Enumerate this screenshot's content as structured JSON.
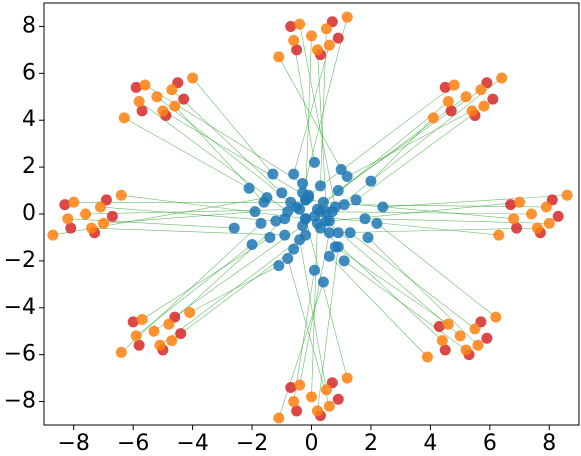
{
  "chart_data": {
    "type": "scatter",
    "xlim": [
      -9,
      9
    ],
    "ylim": [
      -9,
      9
    ],
    "xticks": [
      {
        "value": -8,
        "label": "−8"
      },
      {
        "value": -6,
        "label": "−6"
      },
      {
        "value": -4,
        "label": "−4"
      },
      {
        "value": -2,
        "label": "−2"
      },
      0,
      2,
      4,
      6,
      8
    ],
    "yticks": [
      {
        "value": -8,
        "label": "−8"
      },
      {
        "value": -6,
        "label": "−6"
      },
      {
        "value": -4,
        "label": "−4"
      },
      {
        "value": -2,
        "label": "−2"
      },
      0,
      2,
      4,
      6,
      8
    ],
    "link_color": "#2ca02c",
    "series": [
      {
        "color": "#d62728",
        "x": [
          8.1,
          6.7,
          7.7,
          6.9,
          8.3,
          5.9,
          4.5,
          5.5,
          4.7,
          6.1,
          0.7,
          -0.7,
          0.3,
          -0.5,
          0.9,
          -4.5,
          -5.9,
          -4.9,
          -5.7,
          -4.3,
          -6.9,
          -8.3,
          -7.3,
          -8.1,
          -6.7,
          -4.6,
          -6.0,
          -5.0,
          -5.8,
          -4.4,
          0.7,
          -0.7,
          0.3,
          -0.5,
          0.9,
          5.7,
          4.3,
          5.3,
          4.5,
          5.9
        ],
        "values": [
          0.6,
          0.4,
          -0.8,
          -0.6,
          -0.1,
          5.6,
          5.4,
          4.2,
          4.4,
          4.9,
          8.2,
          8.0,
          6.8,
          7.0,
          7.5,
          5.6,
          5.4,
          4.2,
          4.4,
          4.9,
          0.6,
          0.4,
          -0.8,
          -0.6,
          -0.1,
          -4.4,
          -4.6,
          -5.8,
          -5.6,
          -5.1,
          -7.2,
          -7.4,
          -8.6,
          -8.4,
          -7.9,
          -4.6,
          -4.8,
          -6.0,
          -5.8,
          -5.3
        ]
      },
      {
        "color": "#ff7f0e",
        "x": [
          7.4,
          7.9,
          7.0,
          8.0,
          6.8,
          7.6,
          8.6,
          6.3,
          5.2,
          5.7,
          4.8,
          5.8,
          4.6,
          5.4,
          6.4,
          4.1,
          0,
          0.5,
          -0.4,
          0.6,
          -0.6,
          0.2,
          1.2,
          -1.1,
          -5.2,
          -4.7,
          -5.6,
          -4.6,
          -5.8,
          -5.0,
          -4.0,
          -6.3,
          -7.6,
          -7.1,
          -8.0,
          -7.0,
          -8.2,
          -7.4,
          -6.4,
          -8.7,
          -5.3,
          -4.8,
          -5.7,
          -4.7,
          -5.9,
          -5.1,
          -4.1,
          -6.4,
          0,
          0.5,
          -0.4,
          0.6,
          -0.6,
          0.2,
          1.2,
          -1.1,
          5.0,
          5.5,
          4.6,
          5.6,
          4.4,
          5.2,
          6.2,
          3.9
        ],
        "values": [
          0,
          0.3,
          0.5,
          -0.4,
          -0.2,
          -0.6,
          0.8,
          -0.9,
          5.0,
          5.3,
          5.5,
          4.6,
          4.8,
          4.4,
          5.8,
          4.1,
          7.6,
          7.9,
          8.1,
          7.2,
          7.4,
          7.0,
          8.4,
          6.7,
          5.0,
          5.3,
          5.5,
          4.6,
          4.8,
          4.4,
          5.8,
          4.1,
          0,
          0.3,
          0.5,
          -0.4,
          -0.2,
          -0.6,
          0.8,
          -0.9,
          -5.0,
          -4.7,
          -4.5,
          -5.4,
          -5.2,
          -5.6,
          -4.2,
          -5.9,
          -7.8,
          -7.5,
          -7.3,
          -8.2,
          -8.0,
          -8.4,
          -7.0,
          -8.7,
          -5.2,
          -4.9,
          -4.7,
          -5.6,
          -5.4,
          -5.8,
          -4.4,
          -6.1
        ]
      },
      {
        "color": "#1f77b4",
        "x": [
          0.3,
          1.1,
          0.6,
          1.8,
          -0.2,
          0.9,
          2.4,
          0.1,
          0.4,
          0.9,
          -0.1,
          1.5,
          0.2,
          1.2,
          0.7,
          2.0,
          -0.2,
          0.3,
          0.8,
          -0.6,
          0.1,
          0.5,
          -0.3,
          1.0,
          -0.5,
          -1.0,
          -0.3,
          -1.6,
          -0.8,
          -0.1,
          -1.3,
          -2.1,
          -0.4,
          -1.2,
          -0.7,
          -1.9,
          -2.6,
          -0.9,
          -0.2,
          -1.5,
          -0.3,
          -0.9,
          -1.4,
          -0.6,
          -2.0,
          -0.2,
          -1.1,
          -1.7,
          0.2,
          -0.4,
          0.6,
          -0.8,
          0.1,
          0.9,
          -0.2,
          0.4,
          0.5,
          1.3,
          0.8,
          1.9,
          0.3,
          1.1,
          2.2,
          0.6
        ],
        "values": [
          0.1,
          0.4,
          -0.3,
          -0.2,
          0.6,
          -0.8,
          0.3,
          -0.1,
          0.5,
          1.0,
          0.8,
          0.6,
          0.2,
          1.6,
          0.1,
          1.4,
          0.6,
          1.2,
          0.3,
          1.7,
          2.2,
          0.1,
          0.9,
          1.9,
          0.3,
          0.9,
          1.3,
          0.5,
          0.1,
          0.7,
          1.7,
          1.1,
          0.2,
          -0.3,
          0.5,
          0.1,
          -0.6,
          -0.9,
          -0.2,
          0.7,
          -0.5,
          -0.2,
          -1.0,
          -1.5,
          -1.3,
          -0.9,
          -2.2,
          -0.4,
          -0.4,
          -1.1,
          -0.8,
          -1.9,
          -2.4,
          -1.4,
          -0.2,
          -2.9,
          -0.3,
          -0.8,
          -1.4,
          -1.0,
          -0.6,
          -2.0,
          -0.4,
          -1.8
        ]
      }
    ]
  }
}
